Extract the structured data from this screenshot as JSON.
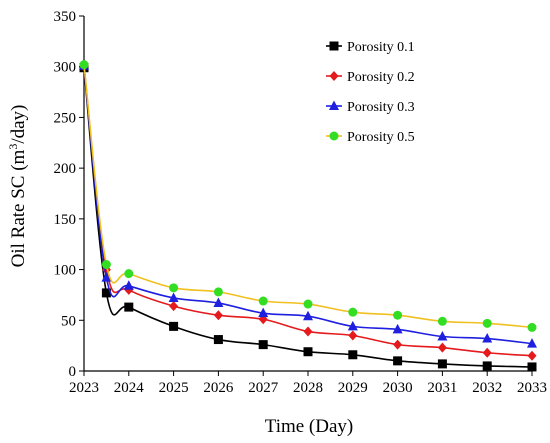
{
  "chart_data": {
    "type": "line",
    "xlabel": "Time (Day)",
    "ylabel_main": "Oil Rate SC (m",
    "ylabel_sup": "3",
    "ylabel_tail": "/day)",
    "x_ticks": [
      "2023",
      "2024",
      "2025",
      "2026",
      "2027",
      "2028",
      "2029",
      "2030",
      "2031",
      "2032",
      "2033"
    ],
    "ylim": [
      0,
      350
    ],
    "y_ticks": [
      0,
      50,
      100,
      150,
      200,
      250,
      300,
      350
    ],
    "x_range": [
      2023,
      2033
    ],
    "legend_position": "top-right",
    "series": [
      {
        "name": "Porosity 0.1",
        "line_color": "#000000",
        "marker_color": "#000000",
        "marker": "square",
        "x": [
          2023,
          2023.5,
          2024,
          2025,
          2026,
          2027,
          2028,
          2029,
          2030,
          2031,
          2032,
          2033
        ],
        "values": [
          299,
          77,
          63,
          44,
          31,
          26,
          19,
          16,
          10,
          7,
          5,
          4
        ]
      },
      {
        "name": "Porosity 0.2",
        "line_color": "#e41a1c",
        "marker_color": "#e41a1c",
        "marker": "diamond",
        "x": [
          2023,
          2023.5,
          2024,
          2025,
          2026,
          2027,
          2028,
          2029,
          2030,
          2031,
          2032,
          2033
        ],
        "values": [
          300,
          100,
          80,
          64,
          55,
          51,
          39,
          35,
          26,
          23,
          18,
          15
        ]
      },
      {
        "name": "Porosity 0.3",
        "line_color": "#1f1fe0",
        "marker_color": "#1f1fe0",
        "marker": "triangle",
        "x": [
          2023,
          2023.5,
          2024,
          2025,
          2026,
          2027,
          2028,
          2029,
          2030,
          2031,
          2032,
          2033
        ],
        "values": [
          301,
          92,
          84,
          72,
          67,
          57,
          54,
          44,
          41,
          34,
          32,
          27
        ]
      },
      {
        "name": "Porosity 0.5",
        "line_color": "#f0c020",
        "marker_color": "#33dd22",
        "marker": "circle",
        "x": [
          2023,
          2023.5,
          2024,
          2025,
          2026,
          2027,
          2028,
          2029,
          2030,
          2031,
          2032,
          2033
        ],
        "values": [
          302,
          105,
          96,
          82,
          78,
          69,
          66,
          58,
          55,
          49,
          47,
          43
        ]
      }
    ]
  }
}
